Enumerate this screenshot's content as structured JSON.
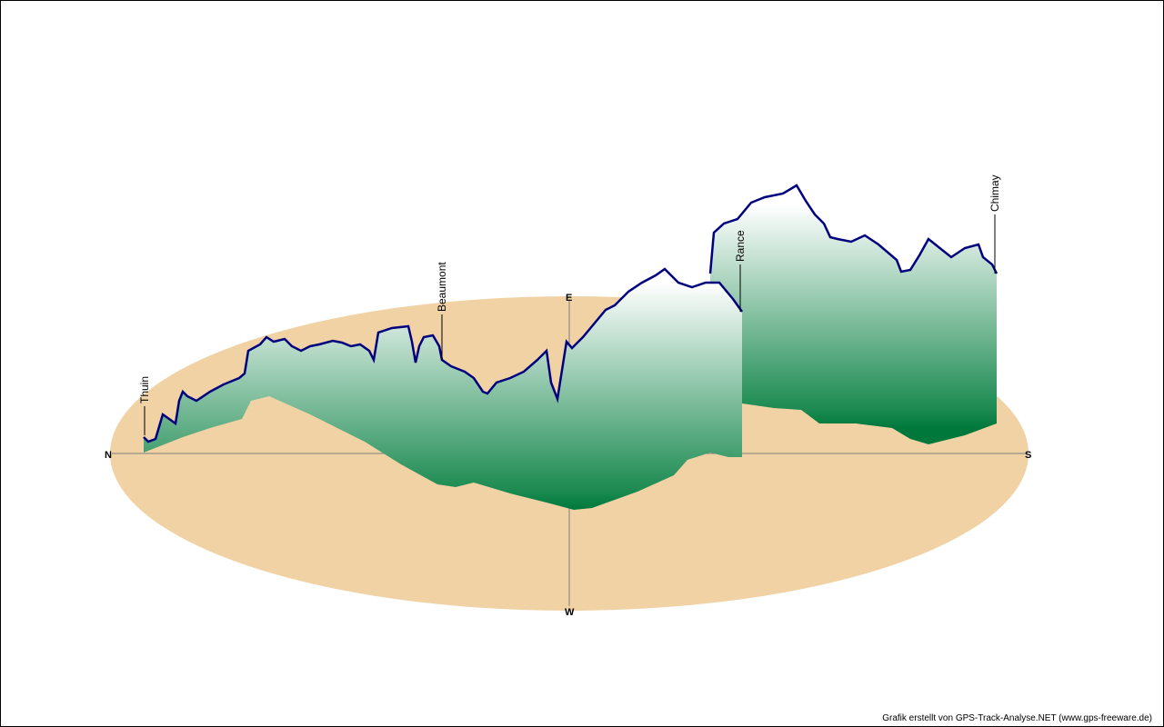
{
  "chart_data": {
    "type": "area",
    "title": "",
    "compass": {
      "north": "N",
      "east": "E",
      "south": "S",
      "west": "W"
    },
    "waypoints": [
      {
        "name": "Thuin",
        "order": 1
      },
      {
        "name": "Beaumont",
        "order": 2
      },
      {
        "name": "Rance",
        "order": 3
      },
      {
        "name": "Chimay",
        "order": 4
      }
    ],
    "grid": false,
    "colors": {
      "ground": "#f0d2a4",
      "track_line": "#00007f",
      "fill_dark": "#00783c",
      "fill_light": "#ffffff",
      "axis": "#7f7f7f"
    }
  },
  "footer": "Grafik erstellt von GPS-Track-Analyse.NET (www.gps-freeware.de)"
}
